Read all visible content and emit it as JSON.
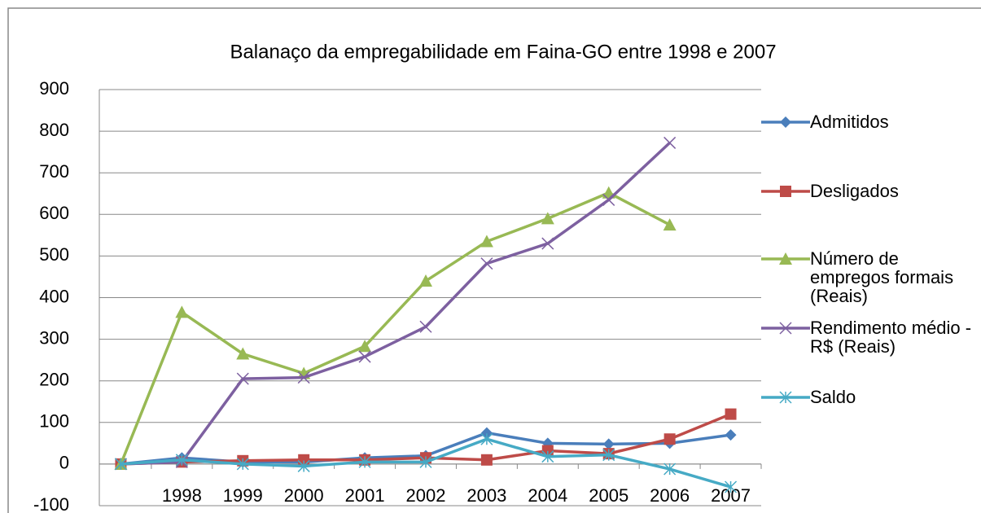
{
  "chart_data": {
    "type": "line",
    "title": "Balanaço da empregabilidade em Faina-GO  entre  1998  e  2007",
    "categories": [
      null,
      "1998",
      "1999",
      "2000",
      "2001",
      "2002",
      "2003",
      "2004",
      "2005",
      "2006",
      "2007"
    ],
    "series": [
      {
        "name": "Admitidos",
        "color": "#4a7ebb",
        "marker": "diamond",
        "values": [
          0,
          15,
          5,
          5,
          15,
          20,
          75,
          50,
          48,
          50,
          70
        ]
      },
      {
        "name": "Desligados",
        "color": "#be4b48",
        "marker": "square",
        "values": [
          0,
          5,
          8,
          10,
          10,
          15,
          10,
          32,
          25,
          60,
          120
        ]
      },
      {
        "name": "Número de empregos formais (Reais)",
        "color": "#98b954",
        "marker": "triangle",
        "values": [
          0,
          365,
          265,
          218,
          283,
          440,
          535,
          590,
          652,
          575,
          null
        ]
      },
      {
        "name": "Rendimento médio - R$ (Reais)",
        "color": "#7d60a0",
        "marker": "x",
        "values": [
          0,
          5,
          205,
          208,
          258,
          330,
          482,
          530,
          635,
          772,
          null
        ]
      },
      {
        "name": "Saldo",
        "color": "#46aac5",
        "marker": "star",
        "values": [
          0,
          10,
          0,
          -5,
          5,
          5,
          60,
          18,
          22,
          -12,
          -55
        ]
      }
    ],
    "ylim": [
      -100,
      900
    ],
    "yticks": [
      -100,
      0,
      100,
      200,
      300,
      400,
      500,
      600,
      700,
      800,
      900
    ],
    "grid": true,
    "legend": "right"
  }
}
